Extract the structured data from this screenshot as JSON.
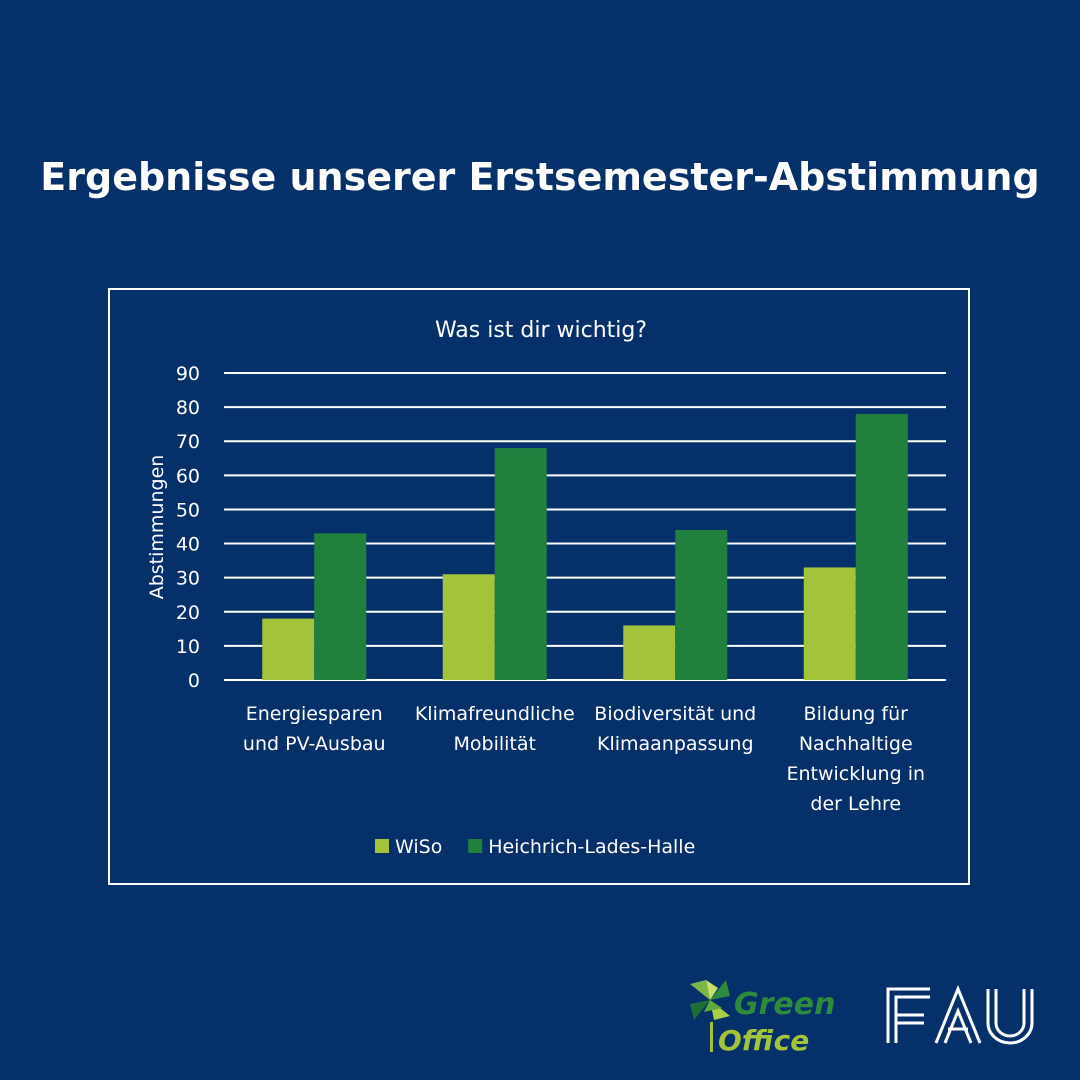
{
  "headline": "Ergebnisse unserer Erstsemester-Abstimmung",
  "colors": {
    "background": "#06306a",
    "wiso": "#a3c33b",
    "hlh": "#22803f",
    "text": "#ffffff"
  },
  "chart_data": {
    "type": "bar",
    "title": "Was ist dir wichtig?",
    "xlabel": "",
    "ylabel": "Abstimmungen",
    "ylim": [
      0,
      90
    ],
    "yticks": [
      0,
      10,
      20,
      30,
      40,
      50,
      60,
      70,
      80,
      90
    ],
    "grid": true,
    "legend_position": "bottom",
    "categories": [
      [
        "Energiesparen",
        "und PV-Ausbau"
      ],
      [
        "Klimafreundliche",
        "Mobilität"
      ],
      [
        "Biodiversität und",
        "Klimaanpassung"
      ],
      [
        "Bildung für",
        "Nachhaltige",
        "Entwicklung in",
        "der Lehre"
      ]
    ],
    "series": [
      {
        "name": "WiSo",
        "color": "#a3c33b",
        "values": [
          18,
          31,
          16,
          33
        ]
      },
      {
        "name": "Heichrich-Lades-Halle",
        "color": "#22803f",
        "values": [
          43,
          68,
          44,
          78
        ]
      }
    ]
  },
  "logos": {
    "green_office": "Green Office",
    "fau": "FAU"
  }
}
